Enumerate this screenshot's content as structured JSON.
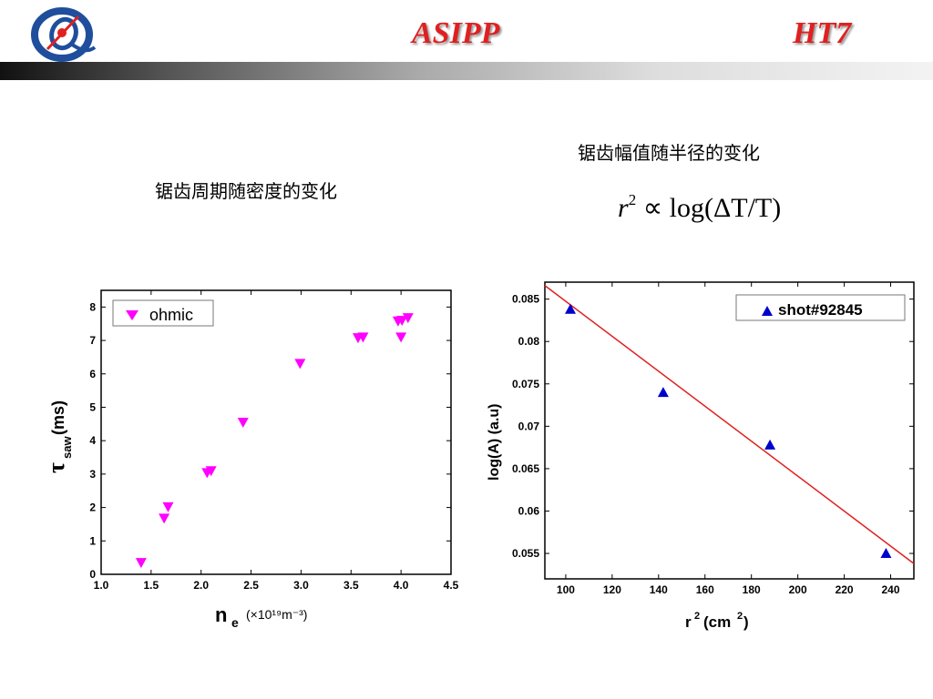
{
  "header": {
    "title_left": "ASIPP",
    "title_right": "HT7",
    "accent_color": "#e02020"
  },
  "captions": {
    "left": "锯齿周期随密度的变化",
    "right": "锯齿幅值随半径的变化",
    "formula_r": "r",
    "formula_exp": "2",
    "formula_sym": "∝",
    "formula_rhs": "log(ΔT/T)"
  },
  "chart_data": [
    {
      "type": "scatter",
      "xlabel_main": "n",
      "xlabel_sub": "e",
      "xlabel_unit": "(×10¹⁹m⁻³)",
      "ylabel_main": "τ",
      "ylabel_sub": "saw",
      "ylabel_unit": "(ms)",
      "xlim": [
        1.0,
        4.5
      ],
      "ylim": [
        0,
        8.5
      ],
      "xticks": [
        1.0,
        1.5,
        2.0,
        2.5,
        3.0,
        3.5,
        4.0,
        4.5
      ],
      "yticks": [
        0,
        1,
        2,
        3,
        4,
        5,
        6,
        7,
        8
      ],
      "legend_position": "top-left",
      "series": [
        {
          "name": "ohmic",
          "color": "#ff00ff",
          "marker": "triangle-down",
          "points": [
            [
              1.4,
              0.35
            ],
            [
              1.63,
              1.68
            ],
            [
              1.67,
              2.02
            ],
            [
              2.06,
              3.04
            ],
            [
              2.1,
              3.1
            ],
            [
              2.42,
              4.55
            ],
            [
              2.99,
              6.31
            ],
            [
              3.57,
              7.08
            ],
            [
              3.62,
              7.1
            ],
            [
              3.97,
              7.58
            ],
            [
              4.0,
              7.1
            ],
            [
              4.01,
              7.6
            ],
            [
              4.07,
              7.68
            ]
          ]
        }
      ]
    },
    {
      "type": "scatter",
      "xlabel_main": "r",
      "xlabel_sup": "2",
      "xlabel_unit": "(cm",
      "xlabel_unit_sup": "2",
      "xlabel_unit_close": ")",
      "ylabel": "log(A)  (a.u)",
      "xlim": [
        91,
        250
      ],
      "ylim": [
        0.052,
        0.087
      ],
      "xticks": [
        100,
        120,
        140,
        160,
        180,
        200,
        220,
        240
      ],
      "yticks": [
        "0.055",
        "0.06",
        "0.065",
        "0.07",
        "0.075",
        "0.08",
        "0.085"
      ],
      "legend_position": "top-right",
      "series": [
        {
          "name": "shot#92845",
          "color": "#0000cc",
          "marker": "triangle-up",
          "points": [
            [
              102,
              0.0838
            ],
            [
              142,
              0.074
            ],
            [
              188,
              0.0678
            ],
            [
              238,
              0.055
            ]
          ]
        }
      ],
      "fit_line": {
        "color": "#e02020",
        "x": [
          91,
          250
        ],
        "y": [
          0.0866,
          0.0538
        ]
      }
    }
  ]
}
